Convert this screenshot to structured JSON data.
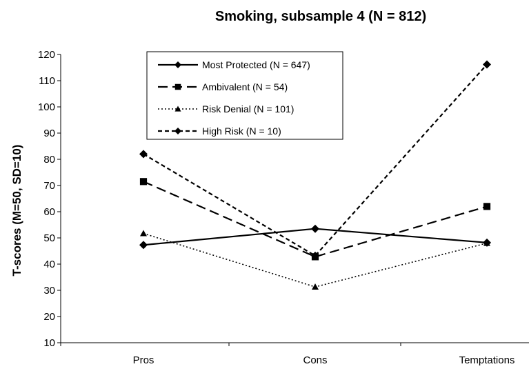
{
  "chart_data": {
    "type": "line",
    "title": "Smoking, subsample 4 (N = 812)",
    "ylabel": "T-scores (M=50, SD=10)",
    "xlabel": "",
    "categories": [
      "Pros",
      "Cons",
      "Temptations"
    ],
    "ylim": [
      10,
      120
    ],
    "yticks": [
      10,
      20,
      30,
      40,
      50,
      60,
      70,
      80,
      90,
      100,
      110,
      120
    ],
    "grid": false,
    "legend_position": "top-center",
    "series": [
      {
        "name": "Most Protected (N = 647)",
        "values": [
          47.3,
          53.5,
          48.2
        ],
        "marker": "diamond",
        "dash": "solid",
        "color": "#000000"
      },
      {
        "name": "Ambivalent (N = 54)",
        "values": [
          71.5,
          42.8,
          62.0
        ],
        "marker": "square",
        "dash": "long-dash",
        "color": "#000000"
      },
      {
        "name": "Risk Denial (N = 101)",
        "values": [
          51.7,
          31.3,
          48.0
        ],
        "marker": "triangle",
        "dash": "dotted",
        "color": "#000000"
      },
      {
        "name": "High Risk (N = 10)",
        "values": [
          82.0,
          43.2,
          116.2
        ],
        "marker": "diamond",
        "dash": "short-dash",
        "color": "#000000"
      }
    ]
  }
}
